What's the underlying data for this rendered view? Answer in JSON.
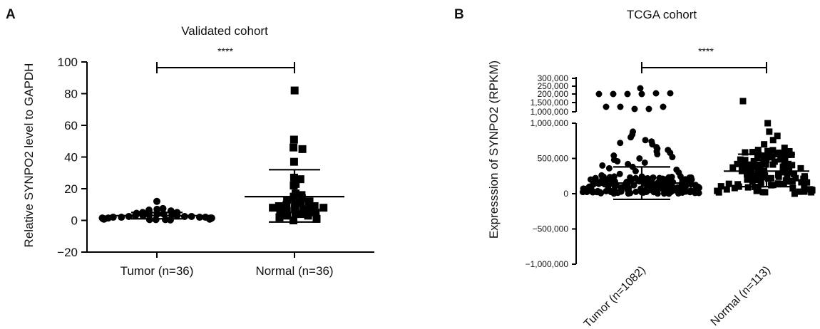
{
  "chart_data": [
    {
      "panel": "A",
      "type": "scatter",
      "title": "Validated cohort",
      "ylabel": "Relative SYNPO2 level to GAPDH",
      "xlabel": "",
      "ylim": [
        -20,
        100
      ],
      "yticks": [
        -20,
        0,
        20,
        40,
        60,
        80,
        100
      ],
      "ytick_labels": [
        "−20",
        "0",
        "20",
        "40",
        "60",
        "80",
        "100"
      ],
      "categories": [
        "Tumor (n=36)",
        "Normal (n=36)"
      ],
      "grid": false,
      "significance": "****",
      "series": [
        {
          "marker": "circle",
          "mean": 3,
          "sd_low": 1,
          "sd_high": 5,
          "values": [
            12,
            7,
            7.5,
            6.5,
            6,
            5,
            5,
            4.5,
            4,
            4,
            3.5,
            3.5,
            3,
            3,
            3,
            2.5,
            2.5,
            2.5,
            2,
            2,
            2,
            2,
            1.5,
            1.5,
            1.5,
            1.5,
            1,
            1,
            1,
            1,
            0.8,
            0.8,
            0.5,
            0.5,
            0.5,
            0.3
          ]
        },
        {
          "marker": "square",
          "mean": 15,
          "sd_low": -1,
          "sd_high": 32,
          "values": [
            82,
            51,
            46,
            45,
            37,
            27,
            26,
            23,
            22,
            17,
            16,
            15,
            14,
            13,
            12,
            11,
            11,
            10,
            10,
            9,
            9,
            8,
            8,
            7,
            7,
            6,
            6,
            5,
            5,
            4,
            4,
            3,
            3,
            2,
            1,
            0
          ]
        }
      ]
    },
    {
      "panel": "B",
      "type": "scatter",
      "title": "TCGA cohort",
      "ylabel": "Expresssion of SYNPO2 (RPKM)",
      "xlabel": "",
      "y_axis_broken": true,
      "ylim_lower": [
        -1000000,
        1000000
      ],
      "yticks_lower": [
        -1000000,
        -500000,
        0,
        500000,
        1000000
      ],
      "ytick_labels_lower": [
        "−1,000,000",
        "−500,000",
        "0",
        "500,000",
        "1,000,000"
      ],
      "ytick_labels_upper": [
        "300,000",
        "250,000",
        "200,000",
        "1,500,000",
        "1,000,000"
      ],
      "categories": [
        "Tumor (n=1082)",
        "Normal (n=113)"
      ],
      "grid": false,
      "significance": "****",
      "series": [
        {
          "marker": "circle",
          "mean": 150000,
          "sd_low": -80000,
          "sd_high": 380000,
          "values_lower": [
            880000,
            840000,
            800000,
            760000,
            740000,
            720000,
            700000,
            660000,
            640000,
            620000,
            600000,
            580000,
            560000,
            540000,
            520000,
            500000,
            480000,
            460000,
            440000,
            420000,
            400000,
            380000,
            360000,
            340000,
            320000,
            300000,
            280000,
            260000,
            240000,
            220000,
            200000,
            180000,
            160000,
            140000,
            120000,
            100000,
            80000,
            60000,
            40000,
            20000,
            10000,
            0
          ],
          "upper_points": 12
        },
        {
          "marker": "square",
          "mean": 320000,
          "sd_low": 100000,
          "sd_high": 560000,
          "values_lower": [
            1000000,
            880000,
            820000,
            760000,
            700000,
            650000,
            620000,
            600000,
            580000,
            560000,
            540000,
            520000,
            500000,
            480000,
            460000,
            440000,
            420000,
            400000,
            380000,
            360000,
            340000,
            320000,
            300000,
            280000,
            260000,
            240000,
            220000,
            200000,
            180000,
            160000,
            140000,
            120000,
            100000,
            80000,
            60000,
            40000,
            20000,
            0
          ],
          "upper_points": 1
        }
      ]
    }
  ],
  "panels": {
    "a_label": "A",
    "b_label": "B"
  },
  "colors": {
    "marker": "#000000",
    "axis": "#000000"
  }
}
